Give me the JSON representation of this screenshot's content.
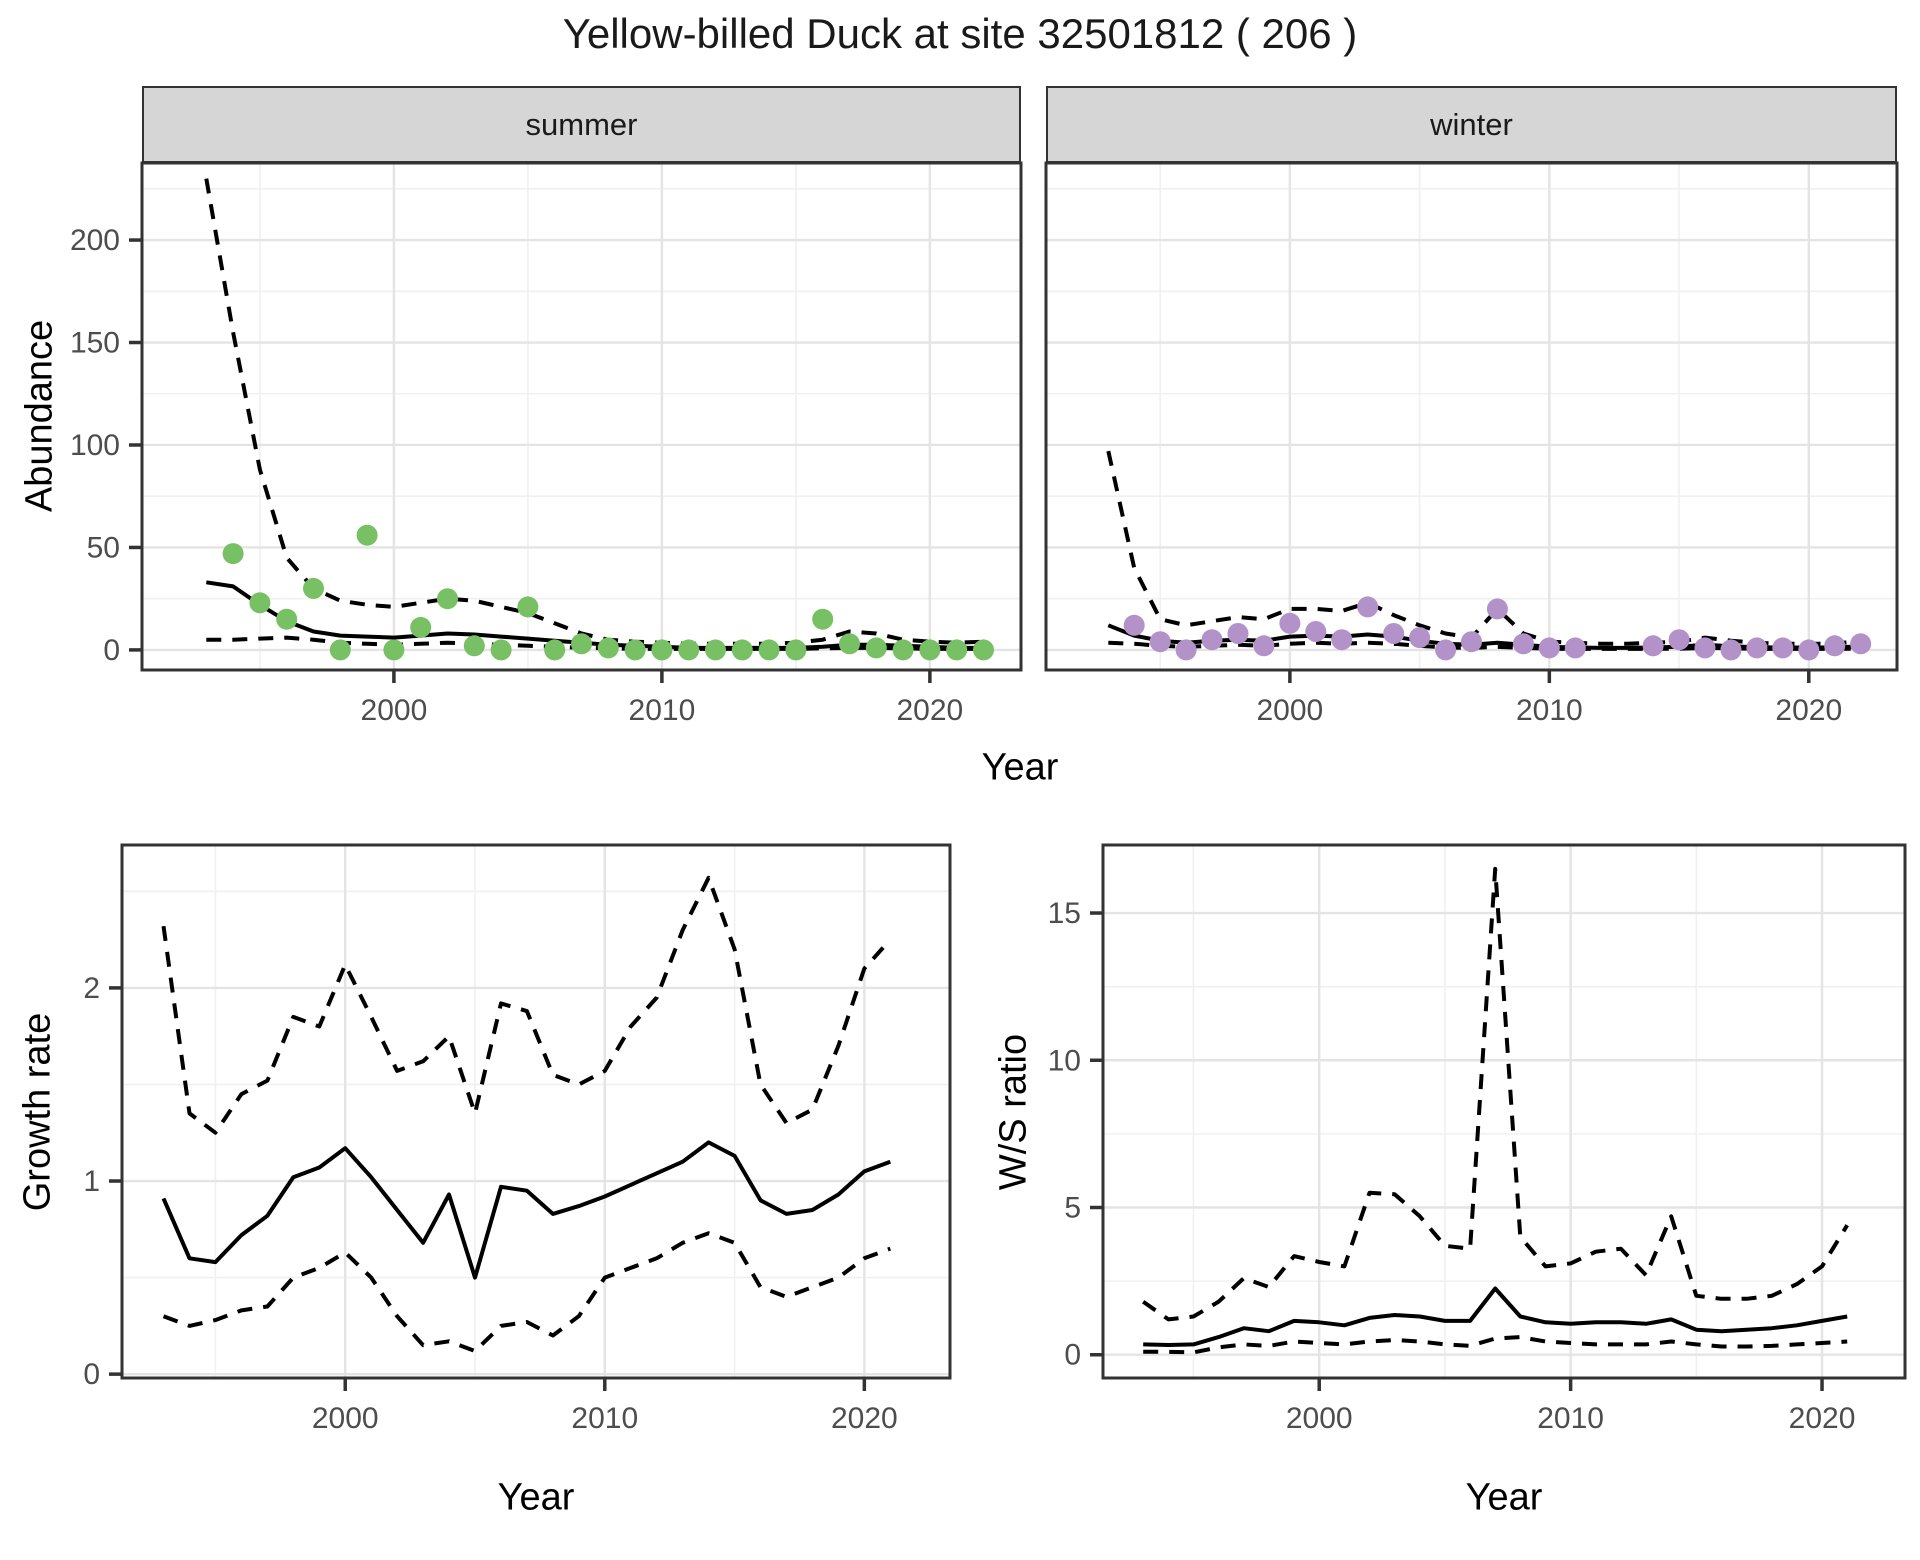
{
  "title": "Yellow-billed Duck at site 32501812 ( 206 )",
  "labels": {
    "abundance": "Abundance",
    "year": "Year",
    "growth_rate": "Growth rate",
    "ws_ratio": "W/S ratio"
  },
  "theme": {
    "background": "#ffffff",
    "strip_background": "#d6d6d6",
    "panel_border": "#333333",
    "grid_major": "#e4e4e4",
    "grid_minor": "#f0f0f0",
    "line_color": "#000000",
    "tick_text": "#4d4d4d",
    "summer_point": "#77c063",
    "winter_point": "#b392c9"
  },
  "chart_data": [
    {
      "name": "abundance-summer",
      "type": "line",
      "facet_label": "summer",
      "xlabel": "Year",
      "ylabel": "Abundance",
      "xlim": [
        1990.6,
        2023.4
      ],
      "ylim": [
        -9.8,
        237.6
      ],
      "x_ticks": [
        2000,
        2010,
        2020
      ],
      "x_minor": [
        1995,
        2005,
        2015
      ],
      "y_ticks": [
        0,
        50,
        100,
        150,
        200
      ],
      "y_minor": [
        25,
        75,
        125,
        175,
        225
      ],
      "x": [
        1993,
        1994,
        1995,
        1996,
        1997,
        1998,
        1999,
        2000,
        2001,
        2002,
        2003,
        2004,
        2005,
        2006,
        2007,
        2008,
        2009,
        2010,
        2011,
        2012,
        2013,
        2014,
        2015,
        2016,
        2017,
        2018,
        2019,
        2020,
        2021,
        2022
      ],
      "series": [
        {
          "name": "mean",
          "style": "solid",
          "values": [
            33,
            31,
            22,
            14,
            9,
            7,
            6.5,
            6,
            7,
            8,
            7.5,
            6.5,
            5.5,
            4.5,
            3.5,
            2.5,
            2,
            1.5,
            1,
            1,
            1,
            1,
            1,
            1.5,
            2.5,
            2.5,
            2,
            1.5,
            1,
            1
          ]
        },
        {
          "name": "upper_ci",
          "style": "dashed",
          "values": [
            230,
            155,
            88,
            45,
            30,
            24,
            22,
            21,
            23,
            25,
            24,
            21,
            18,
            13,
            8,
            5,
            4,
            3.5,
            3,
            3,
            3,
            3,
            3.5,
            5,
            9,
            8,
            5,
            4,
            3.5,
            4
          ]
        },
        {
          "name": "lower_ci",
          "style": "dashed",
          "values": [
            5,
            5,
            5.5,
            6,
            5,
            3.5,
            3,
            2.5,
            3,
            3.5,
            3,
            2.5,
            2,
            1.5,
            1,
            0.8,
            0.5,
            0.5,
            0.5,
            0.5,
            0.5,
            0.5,
            0.5,
            0.8,
            1,
            1,
            0.8,
            0.5,
            0.5,
            0.5
          ]
        }
      ],
      "points": {
        "name": "observed-count",
        "color": "#77c063",
        "x": [
          1994,
          1995,
          1996,
          1997,
          1998,
          1999,
          2000,
          2001,
          2002,
          2003,
          2004,
          2005,
          2006,
          2007,
          2008,
          2009,
          2010,
          2011,
          2012,
          2013,
          2014,
          2015,
          2016,
          2017,
          2018,
          2019,
          2020,
          2021,
          2022
        ],
        "y": [
          47,
          23,
          15,
          30,
          0,
          56,
          0,
          11,
          25,
          2,
          0,
          21,
          0,
          3,
          1,
          0,
          0,
          0,
          0,
          0,
          0,
          0,
          15,
          3,
          1,
          0,
          0,
          0,
          0
        ]
      }
    },
    {
      "name": "abundance-winter",
      "type": "line",
      "facet_label": "winter",
      "xlabel": "Year",
      "ylabel": "Abundance",
      "xlim": [
        1990.6,
        2023.4
      ],
      "ylim": [
        -9.8,
        237.6
      ],
      "x_ticks": [
        2000,
        2010,
        2020
      ],
      "x_minor": [
        1995,
        2005,
        2015
      ],
      "y_ticks": [
        0,
        50,
        100,
        150,
        200
      ],
      "y_minor": [
        25,
        75,
        125,
        175,
        225
      ],
      "x": [
        1993,
        1994,
        1995,
        1996,
        1997,
        1998,
        1999,
        2000,
        2001,
        2002,
        2003,
        2004,
        2005,
        2006,
        2007,
        2008,
        2009,
        2010,
        2011,
        2012,
        2013,
        2014,
        2015,
        2016,
        2017,
        2018,
        2019,
        2020,
        2021,
        2022
      ],
      "series": [
        {
          "name": "mean",
          "style": "solid",
          "values": [
            12,
            7,
            4.5,
            3.5,
            4.5,
            5,
            4.5,
            6.5,
            7,
            6.5,
            7.5,
            6.5,
            4.5,
            3,
            2.5,
            3.5,
            2.5,
            1.5,
            1.2,
            1,
            1,
            1.2,
            1.5,
            2.5,
            1.8,
            1.3,
            1.2,
            1.2,
            1.2,
            1.8
          ]
        },
        {
          "name": "upper_ci",
          "style": "dashed",
          "values": [
            97,
            40,
            15,
            12,
            14,
            16,
            15,
            20,
            20,
            19,
            23,
            17,
            12,
            8,
            6,
            20,
            8,
            4,
            3.5,
            3,
            3,
            3.5,
            4,
            6,
            4.5,
            3.5,
            3,
            3,
            3,
            4.5
          ]
        },
        {
          "name": "lower_ci",
          "style": "dashed",
          "values": [
            3.5,
            3,
            2,
            1.5,
            2,
            2.5,
            2,
            3,
            3.5,
            3,
            3.5,
            3,
            2,
            1.2,
            1,
            1.5,
            1,
            0.6,
            0.5,
            0.5,
            0.5,
            0.5,
            0.6,
            1,
            0.8,
            0.5,
            0.5,
            0.5,
            0.5,
            0.6
          ]
        }
      ],
      "points": {
        "name": "observed-count",
        "color": "#b392c9",
        "x": [
          1994,
          1995,
          1996,
          1997,
          1998,
          1999,
          2000,
          2001,
          2002,
          2003,
          2004,
          2005,
          2006,
          2007,
          2008,
          2009,
          2010,
          2011,
          2014,
          2015,
          2016,
          2017,
          2018,
          2019,
          2020,
          2021,
          2022
        ],
        "y": [
          12,
          4,
          0,
          5,
          8,
          2,
          13,
          9,
          5,
          21,
          8,
          6,
          0,
          4,
          20,
          3,
          1,
          1,
          2,
          5,
          1,
          0,
          1,
          1,
          0,
          2,
          3
        ]
      }
    },
    {
      "name": "growth-rate",
      "type": "line",
      "facet_label": "",
      "xlabel": "Year",
      "ylabel": "Growth rate",
      "xlim": [
        1991.4,
        2023.3
      ],
      "ylim": [
        -0.02,
        2.74
      ],
      "x_ticks": [
        2000,
        2010,
        2020
      ],
      "x_minor": [
        1995,
        2005,
        2015
      ],
      "y_ticks": [
        0,
        1,
        2
      ],
      "y_minor": [
        0.5,
        1.5,
        2.5
      ],
      "x": [
        1993,
        1994,
        1995,
        1996,
        1997,
        1998,
        1999,
        2000,
        2001,
        2002,
        2003,
        2004,
        2005,
        2006,
        2007,
        2008,
        2009,
        2010,
        2011,
        2012,
        2013,
        2014,
        2015,
        2016,
        2017,
        2018,
        2019,
        2020,
        2021
      ],
      "series": [
        {
          "name": "mean",
          "style": "solid",
          "values": [
            0.91,
            0.6,
            0.58,
            0.72,
            0.82,
            1.02,
            1.07,
            1.17,
            1.02,
            0.85,
            0.68,
            0.93,
            0.5,
            0.97,
            0.95,
            0.83,
            0.87,
            0.92,
            0.98,
            1.04,
            1.1,
            1.2,
            1.13,
            0.9,
            0.83,
            0.85,
            0.93,
            1.05,
            1.1
          ]
        },
        {
          "name": "upper_ci",
          "style": "dashed",
          "values": [
            2.32,
            1.35,
            1.25,
            1.45,
            1.52,
            1.85,
            1.8,
            2.12,
            1.85,
            1.57,
            1.62,
            1.75,
            1.35,
            1.92,
            1.88,
            1.55,
            1.5,
            1.57,
            1.8,
            1.95,
            2.3,
            2.57,
            2.2,
            1.5,
            1.3,
            1.37,
            1.7,
            2.1,
            2.25
          ]
        },
        {
          "name": "lower_ci",
          "style": "dashed",
          "values": [
            0.3,
            0.25,
            0.28,
            0.33,
            0.35,
            0.5,
            0.55,
            0.63,
            0.5,
            0.3,
            0.15,
            0.17,
            0.12,
            0.25,
            0.27,
            0.2,
            0.3,
            0.5,
            0.55,
            0.6,
            0.68,
            0.73,
            0.68,
            0.45,
            0.4,
            0.45,
            0.5,
            0.6,
            0.65
          ]
        }
      ],
      "points": null
    },
    {
      "name": "ws-ratio",
      "type": "line",
      "facet_label": "",
      "xlabel": "Year",
      "ylabel": "W/S ratio",
      "xlim": [
        1991.4,
        2023.3
      ],
      "ylim": [
        -0.79,
        17.31
      ],
      "x_ticks": [
        2000,
        2010,
        2020
      ],
      "x_minor": [
        1995,
        2005,
        2015
      ],
      "y_ticks": [
        0,
        5,
        10,
        15
      ],
      "y_minor": [
        2.5,
        7.5,
        12.5
      ],
      "x": [
        1993,
        1994,
        1995,
        1996,
        1997,
        1998,
        1999,
        2000,
        2001,
        2002,
        2003,
        2004,
        2005,
        2006,
        2007,
        2008,
        2009,
        2010,
        2011,
        2012,
        2013,
        2014,
        2015,
        2016,
        2017,
        2018,
        2019,
        2020,
        2021
      ],
      "series": [
        {
          "name": "mean",
          "style": "solid",
          "values": [
            0.35,
            0.33,
            0.35,
            0.6,
            0.9,
            0.8,
            1.15,
            1.1,
            1.0,
            1.25,
            1.35,
            1.3,
            1.15,
            1.15,
            2.25,
            1.3,
            1.1,
            1.05,
            1.1,
            1.1,
            1.05,
            1.2,
            0.85,
            0.8,
            0.85,
            0.9,
            1.0,
            1.15,
            1.3
          ]
        },
        {
          "name": "upper_ci",
          "style": "dashed",
          "values": [
            1.8,
            1.2,
            1.3,
            1.8,
            2.6,
            2.3,
            3.35,
            3.15,
            3.0,
            5.5,
            5.45,
            4.7,
            3.7,
            3.6,
            16.5,
            4.0,
            3.0,
            3.1,
            3.5,
            3.6,
            2.7,
            4.7,
            2.0,
            1.9,
            1.9,
            2.0,
            2.4,
            3.0,
            4.4
          ]
        },
        {
          "name": "lower_ci",
          "style": "dashed",
          "values": [
            0.1,
            0.1,
            0.08,
            0.25,
            0.35,
            0.3,
            0.45,
            0.4,
            0.35,
            0.45,
            0.5,
            0.45,
            0.35,
            0.3,
            0.55,
            0.6,
            0.45,
            0.4,
            0.35,
            0.35,
            0.35,
            0.45,
            0.35,
            0.28,
            0.28,
            0.3,
            0.35,
            0.4,
            0.45
          ]
        }
      ],
      "points": null
    }
  ]
}
